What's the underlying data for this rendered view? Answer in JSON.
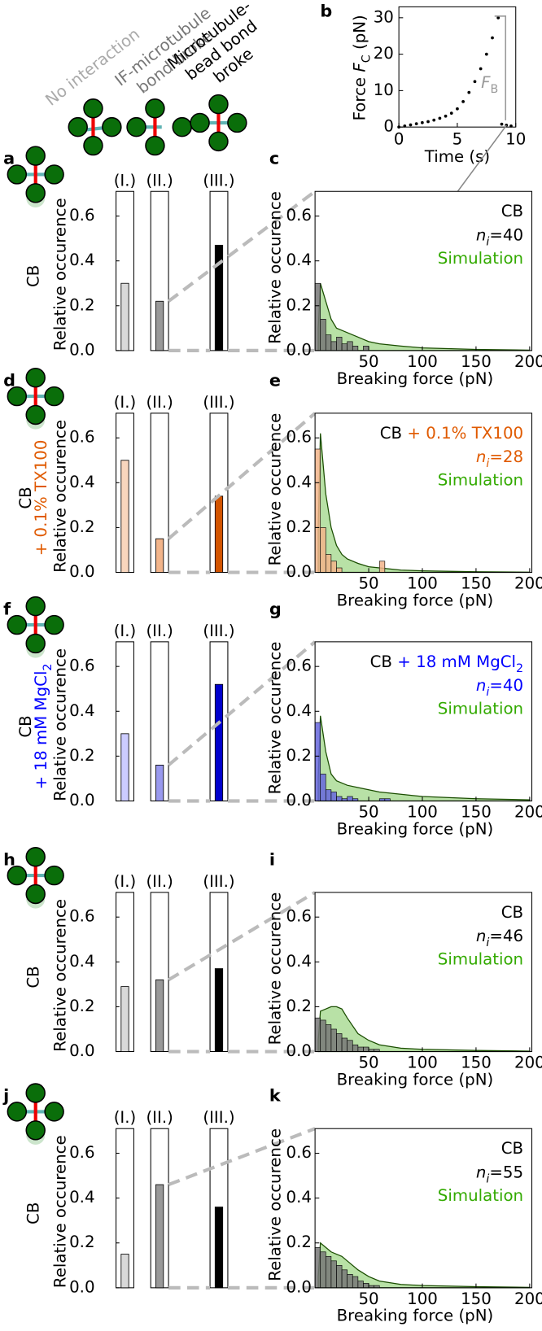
{
  "header": {
    "labels": [
      {
        "lines": [
          "No interaction"
        ],
        "color": "#aaaaaa"
      },
      {
        "lines": [
          "IF-microtubule",
          "bond broke"
        ],
        "color": "#777777"
      },
      {
        "lines": [
          "Microtubule-",
          "bead bond",
          "broke"
        ],
        "color": "#000000"
      }
    ]
  },
  "chart_data": [
    {
      "type": "scatter",
      "panel": "b",
      "xlabel": "Time (s)",
      "ylabel": [
        {
          "text": "Force "
        },
        {
          "text": "F",
          "italic": true
        },
        {
          "text": "C",
          "sub": true
        },
        {
          "text": " (pN)"
        }
      ],
      "annotation": [
        {
          "text": "F",
          "italic": true
        },
        {
          "text": "B",
          "sub": true
        }
      ],
      "x": [
        0,
        0.5,
        1,
        1.5,
        2,
        2.5,
        3,
        3.5,
        4,
        4.5,
        5,
        5.5,
        6,
        6.5,
        7,
        7.5,
        8,
        8.5,
        8.8,
        9.2,
        9.6
      ],
      "values": [
        0,
        0.3,
        0.6,
        0.9,
        1.2,
        1.5,
        1.9,
        2.4,
        3.0,
        3.8,
        5.0,
        7.0,
        9.5,
        12.5,
        16,
        20,
        24.5,
        30,
        0.8,
        0.5,
        0.3
      ],
      "color": "#000000",
      "xlim": [
        0,
        10
      ],
      "ylim": [
        0,
        33
      ],
      "xticks": [
        0,
        5,
        10
      ],
      "yticks": [
        0,
        10,
        20,
        30
      ]
    },
    {
      "type": "bar",
      "panel": "a",
      "row_label": [
        [
          {
            "text": "CB",
            "color": "#000000"
          }
        ]
      ],
      "ylabel": "Relative occurence",
      "categories": [
        "(I.)",
        "(II.)",
        "(III.)"
      ],
      "values": [
        0.3,
        0.22,
        0.47
      ],
      "colors": [
        "#d9d9d9",
        "#999999",
        "#000000"
      ],
      "ylim": [
        0,
        0.71
      ],
      "yticks": [
        {
          "value": 0,
          "label": "0.0"
        },
        0.2,
        0.4,
        0.6
      ]
    },
    {
      "type": "histogram",
      "panel": "c",
      "title": [
        {
          "text": "CB",
          "color": "#000000"
        }
      ],
      "sample_size": [
        {
          "text": "n",
          "italic": true
        },
        {
          "text": "i",
          "sub": true,
          "italic": true
        },
        {
          "text": "=40"
        }
      ],
      "xlabel": "Breaking force (pN)",
      "ylabel": "Relative occurence",
      "bins": [
        0,
        5,
        10,
        15,
        20,
        25,
        30,
        35,
        40,
        45,
        50,
        55,
        60,
        65,
        70
      ],
      "values": [
        0.3,
        0.14,
        0.07,
        0.04,
        0.06,
        0.03,
        0.04,
        0.02,
        0,
        0.02,
        0,
        0,
        0,
        0
      ],
      "color": "#777777",
      "series": [
        {
          "name": "Simulation",
          "color": "#33aa00",
          "x": [
            3,
            5,
            10,
            15,
            20,
            25,
            30,
            40,
            50,
            60,
            80,
            100,
            150,
            200
          ],
          "values": [
            0.1,
            0.3,
            0.22,
            0.14,
            0.1,
            0.09,
            0.08,
            0.06,
            0.04,
            0.03,
            0.02,
            0.012,
            0.005,
            0.002
          ]
        }
      ],
      "xlim": [
        0,
        202
      ],
      "ylim": [
        0,
        0.71
      ],
      "xticks": [
        50,
        100,
        150,
        200
      ],
      "yticks": [
        {
          "value": 0,
          "label": "0.0"
        },
        0.2,
        0.4,
        0.6
      ]
    },
    {
      "type": "bar",
      "panel": "d",
      "row_label": [
        [
          {
            "text": "CB",
            "color": "#000000"
          }
        ],
        [
          {
            "text": "+ 0.1% TX100",
            "color": "#e05a00"
          }
        ]
      ],
      "ylabel": "Relative occurence",
      "categories": [
        "(I.)",
        "(II.)",
        "(III.)"
      ],
      "values": [
        0.5,
        0.15,
        0.34
      ],
      "colors": [
        "#f8d6bd",
        "#f2b48a",
        "#d35400"
      ],
      "ylim": [
        0,
        0.71
      ],
      "yticks": [
        {
          "value": 0,
          "label": "0.0"
        },
        0.2,
        0.4,
        0.6
      ]
    },
    {
      "type": "histogram",
      "panel": "e",
      "title": [
        {
          "text": "CB",
          "color": "#000000"
        },
        {
          "text": " + 0.1% TX100",
          "color": "#e05a00"
        }
      ],
      "sample_size": [
        {
          "text": "n",
          "italic": true,
          "color": "#e05a00"
        },
        {
          "text": "i",
          "sub": true,
          "italic": true,
          "color": "#e05a00"
        },
        {
          "text": "=28",
          "color": "#e05a00"
        }
      ],
      "xlabel": "Breaking force (pN)",
      "ylabel": "Relative occurence",
      "bins": [
        0,
        5,
        10,
        15,
        20,
        25,
        30,
        35,
        40,
        45,
        50,
        55,
        60,
        65,
        70
      ],
      "values": [
        0.55,
        0.2,
        0.08,
        0.05,
        0.02,
        0,
        0,
        0,
        0,
        0,
        0,
        0,
        0.05,
        0
      ],
      "color": "#f2b48a",
      "series": [
        {
          "name": "Simulation",
          "color": "#33aa00",
          "x": [
            3,
            5,
            10,
            15,
            20,
            25,
            30,
            40,
            50,
            60,
            80,
            100,
            150,
            200
          ],
          "values": [
            0.2,
            0.62,
            0.35,
            0.2,
            0.12,
            0.08,
            0.06,
            0.04,
            0.025,
            0.02,
            0.01,
            0.007,
            0.003,
            0.001
          ]
        }
      ],
      "xlim": [
        0,
        202
      ],
      "ylim": [
        0,
        0.71
      ],
      "xticks": [
        50,
        100,
        150,
        200
      ],
      "yticks": [
        {
          "value": 0,
          "label": "0.0"
        },
        0.2,
        0.4,
        0.6
      ]
    },
    {
      "type": "bar",
      "panel": "f",
      "row_label": [
        [
          {
            "text": "CB",
            "color": "#000000"
          }
        ],
        [
          {
            "text": "+ 18 mM MgCl",
            "color": "#0000ff"
          },
          {
            "text": "2",
            "sub": true,
            "color": "#0000ff"
          }
        ]
      ],
      "ylabel": "Relative occurence",
      "categories": [
        "(I.)",
        "(II.)",
        "(III.)"
      ],
      "values": [
        0.3,
        0.16,
        0.52
      ],
      "colors": [
        "#ccccff",
        "#9999ee",
        "#0000cc"
      ],
      "ylim": [
        0,
        0.71
      ],
      "yticks": [
        {
          "value": 0,
          "label": "0.0"
        },
        0.2,
        0.4,
        0.6
      ]
    },
    {
      "type": "histogram",
      "panel": "g",
      "title": [
        {
          "text": "CB",
          "color": "#000000"
        },
        {
          "text": " + 18 mM MgCl",
          "color": "#0000ff"
        },
        {
          "text": "2",
          "sub": true,
          "color": "#0000ff"
        }
      ],
      "sample_size": [
        {
          "text": "n",
          "italic": true,
          "color": "#0000ff"
        },
        {
          "text": "i",
          "sub": true,
          "italic": true,
          "color": "#0000ff"
        },
        {
          "text": "=40",
          "color": "#0000ff"
        }
      ],
      "xlabel": "Breaking force (pN)",
      "ylabel": "Relative occurence",
      "bins": [
        0,
        5,
        10,
        15,
        20,
        25,
        30,
        35,
        40,
        45,
        50,
        55,
        60,
        65,
        70
      ],
      "values": [
        0.35,
        0.12,
        0.05,
        0.04,
        0.02,
        0.01,
        0.02,
        0.01,
        0,
        0,
        0,
        0,
        0.01,
        0.01
      ],
      "color": "#6666dd",
      "series": [
        {
          "name": "Simulation",
          "color": "#33aa00",
          "x": [
            3,
            5,
            10,
            15,
            20,
            25,
            30,
            40,
            50,
            60,
            80,
            100,
            150,
            200
          ],
          "values": [
            0.1,
            0.38,
            0.22,
            0.12,
            0.09,
            0.08,
            0.07,
            0.06,
            0.05,
            0.04,
            0.03,
            0.02,
            0.01,
            0.005
          ]
        }
      ],
      "xlim": [
        0,
        202
      ],
      "ylim": [
        0,
        0.71
      ],
      "xticks": [
        50,
        100,
        150,
        200
      ],
      "yticks": [
        {
          "value": 0,
          "label": "0.0"
        },
        0.2,
        0.4,
        0.6
      ]
    },
    {
      "type": "bar",
      "panel": "h",
      "row_label": [
        [
          {
            "text": "CB",
            "color": "#000000"
          }
        ]
      ],
      "ylabel": "Relative occurence",
      "categories": [
        "(I.)",
        "(II.)",
        "(III.)"
      ],
      "values": [
        0.29,
        0.32,
        0.37
      ],
      "colors": [
        "#d9d9d9",
        "#999999",
        "#000000"
      ],
      "ylim": [
        0,
        0.71
      ],
      "yticks": [
        {
          "value": 0,
          "label": "0.0"
        },
        0.2,
        0.4,
        0.6
      ]
    },
    {
      "type": "histogram",
      "panel": "i",
      "title": [
        {
          "text": "CB",
          "color": "#000000"
        }
      ],
      "sample_size": [
        {
          "text": "n",
          "italic": true
        },
        {
          "text": "i",
          "sub": true,
          "italic": true
        },
        {
          "text": "=46"
        }
      ],
      "xlabel": "Breaking force (pN)",
      "ylabel": "Relative occurence",
      "bins": [
        0,
        5,
        10,
        15,
        20,
        25,
        30,
        35,
        40,
        45,
        50,
        55,
        60,
        65,
        70
      ],
      "values": [
        0.15,
        0.14,
        0.12,
        0.1,
        0.08,
        0.06,
        0.05,
        0.03,
        0.02,
        0.02,
        0.01,
        0.01,
        0,
        0
      ],
      "color": "#777777",
      "series": [
        {
          "name": "Simulation",
          "color": "#33aa00",
          "x": [
            3,
            5,
            10,
            15,
            20,
            25,
            30,
            40,
            50,
            60,
            80,
            100,
            150,
            200
          ],
          "values": [
            0.05,
            0.18,
            0.19,
            0.2,
            0.2,
            0.19,
            0.15,
            0.08,
            0.05,
            0.03,
            0.015,
            0.01,
            0.005,
            0.002
          ]
        }
      ],
      "xlim": [
        0,
        202
      ],
      "ylim": [
        0,
        0.71
      ],
      "xticks": [
        50,
        100,
        150,
        200
      ],
      "yticks": [
        {
          "value": 0,
          "label": "0.0"
        },
        0.2,
        0.4,
        0.6
      ]
    },
    {
      "type": "bar",
      "panel": "j",
      "row_label": [
        [
          {
            "text": "CB",
            "color": "#000000"
          }
        ]
      ],
      "ylabel": "Relative occurence",
      "categories": [
        "(I.)",
        "(II.)",
        "(III.)"
      ],
      "values": [
        0.15,
        0.46,
        0.36
      ],
      "colors": [
        "#d9d9d9",
        "#999999",
        "#000000"
      ],
      "ylim": [
        0,
        0.71
      ],
      "yticks": [
        {
          "value": 0,
          "label": "0.0"
        },
        0.2,
        0.4,
        0.6
      ]
    },
    {
      "type": "histogram",
      "panel": "k",
      "title": [
        {
          "text": "CB",
          "color": "#000000"
        }
      ],
      "sample_size": [
        {
          "text": "n",
          "italic": true
        },
        {
          "text": "i",
          "sub": true,
          "italic": true
        },
        {
          "text": "=55"
        }
      ],
      "xlabel": "Breaking force (pN)",
      "ylabel": "Relative occurence",
      "bins": [
        0,
        5,
        10,
        15,
        20,
        25,
        30,
        35,
        40,
        45,
        50,
        55,
        60,
        65,
        70
      ],
      "values": [
        0.18,
        0.16,
        0.14,
        0.12,
        0.1,
        0.08,
        0.06,
        0.05,
        0.03,
        0.02,
        0.01,
        0.01,
        0,
        0
      ],
      "color": "#777777",
      "series": [
        {
          "name": "Simulation",
          "color": "#33aa00",
          "x": [
            3,
            5,
            10,
            15,
            20,
            25,
            30,
            40,
            50,
            60,
            80,
            100,
            150,
            200
          ],
          "values": [
            0.05,
            0.2,
            0.18,
            0.16,
            0.15,
            0.14,
            0.12,
            0.08,
            0.05,
            0.03,
            0.015,
            0.01,
            0.005,
            0.002
          ]
        }
      ],
      "xlim": [
        0,
        202
      ],
      "ylim": [
        0,
        0.71
      ],
      "xticks": [
        50,
        100,
        150,
        200
      ],
      "yticks": [
        {
          "value": 0,
          "label": "0.0"
        },
        0.2,
        0.4,
        0.6
      ]
    }
  ]
}
